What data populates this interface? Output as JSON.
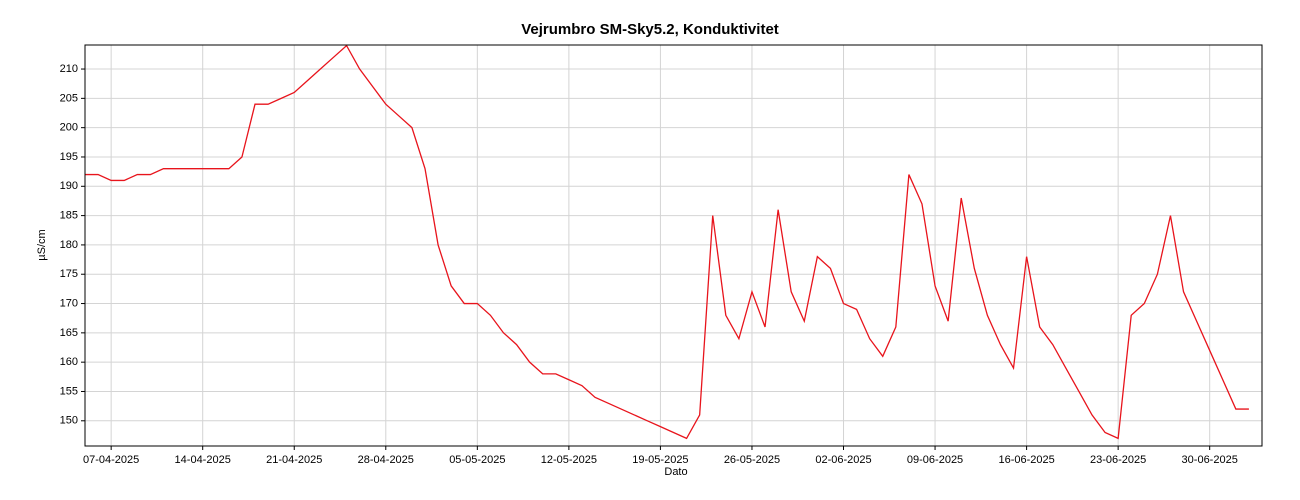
{
  "chart_data": {
    "type": "line",
    "title": "Vejrumbro SM-Sky5.2, Konduktivitet",
    "xlabel": "Dato",
    "ylabel": "µS/cm",
    "x": [
      "05-04-2025",
      "06-04-2025",
      "07-04-2025",
      "08-04-2025",
      "09-04-2025",
      "10-04-2025",
      "11-04-2025",
      "12-04-2025",
      "13-04-2025",
      "14-04-2025",
      "15-04-2025",
      "16-04-2025",
      "17-04-2025",
      "18-04-2025",
      "19-04-2025",
      "20-04-2025",
      "21-04-2025",
      "22-04-2025",
      "23-04-2025",
      "24-04-2025",
      "25-04-2025",
      "26-04-2025",
      "27-04-2025",
      "28-04-2025",
      "29-04-2025",
      "30-04-2025",
      "01-05-2025",
      "02-05-2025",
      "03-05-2025",
      "04-05-2025",
      "05-05-2025",
      "06-05-2025",
      "07-05-2025",
      "08-05-2025",
      "09-05-2025",
      "10-05-2025",
      "11-05-2025",
      "12-05-2025",
      "13-05-2025",
      "14-05-2025",
      "15-05-2025",
      "16-05-2025",
      "17-05-2025",
      "18-05-2025",
      "19-05-2025",
      "20-05-2025",
      "21-05-2025",
      "22-05-2025",
      "23-05-2025",
      "24-05-2025",
      "25-05-2025",
      "26-05-2025",
      "27-05-2025",
      "28-05-2025",
      "29-05-2025",
      "30-05-2025",
      "31-05-2025",
      "01-06-2025",
      "02-06-2025",
      "03-06-2025",
      "04-06-2025",
      "05-06-2025",
      "06-06-2025",
      "07-06-2025",
      "08-06-2025",
      "09-06-2025",
      "10-06-2025",
      "11-06-2025",
      "12-06-2025",
      "13-06-2025",
      "14-06-2025",
      "15-06-2025",
      "16-06-2025",
      "17-06-2025",
      "18-06-2025",
      "19-06-2025",
      "20-06-2025",
      "21-06-2025",
      "22-06-2025",
      "23-06-2025",
      "24-06-2025",
      "25-06-2025",
      "26-06-2025",
      "27-06-2025",
      "28-06-2025",
      "29-06-2025",
      "30-06-2025",
      "01-07-2025",
      "02-07-2025",
      "03-07-2025"
    ],
    "series": [
      {
        "name": "Konduktivitet",
        "color": "#e8141c",
        "values": [
          192,
          192,
          191,
          191,
          192,
          192,
          193,
          193,
          193,
          193,
          193,
          193,
          195,
          204,
          204,
          205,
          206,
          208,
          210,
          212,
          214,
          210,
          207,
          204,
          202,
          200,
          193,
          180,
          173,
          170,
          170,
          168,
          165,
          163,
          160,
          158,
          158,
          157,
          156,
          154,
          153,
          152,
          151,
          150,
          149,
          148,
          147,
          151,
          185,
          168,
          164,
          172,
          166,
          186,
          172,
          167,
          178,
          176,
          170,
          169,
          164,
          161,
          166,
          192,
          187,
          173,
          167,
          188,
          176,
          168,
          163,
          159,
          178,
          166,
          163,
          159,
          155,
          151,
          148,
          147,
          168,
          170,
          175,
          185,
          172,
          167,
          162,
          157,
          152,
          152
        ]
      }
    ],
    "xlim": [
      "05-04-2025",
      "04-07-2025"
    ],
    "xticks": [
      "07-04-2025",
      "14-04-2025",
      "21-04-2025",
      "28-04-2025",
      "05-05-2025",
      "12-05-2025",
      "19-05-2025",
      "26-05-2025",
      "02-06-2025",
      "09-06-2025",
      "16-06-2025",
      "23-06-2025",
      "30-06-2025"
    ],
    "ylim": [
      145.7,
      214.1
    ],
    "yticks": [
      150,
      155,
      160,
      165,
      170,
      175,
      180,
      185,
      190,
      195,
      200,
      205,
      210
    ],
    "grid": true
  }
}
